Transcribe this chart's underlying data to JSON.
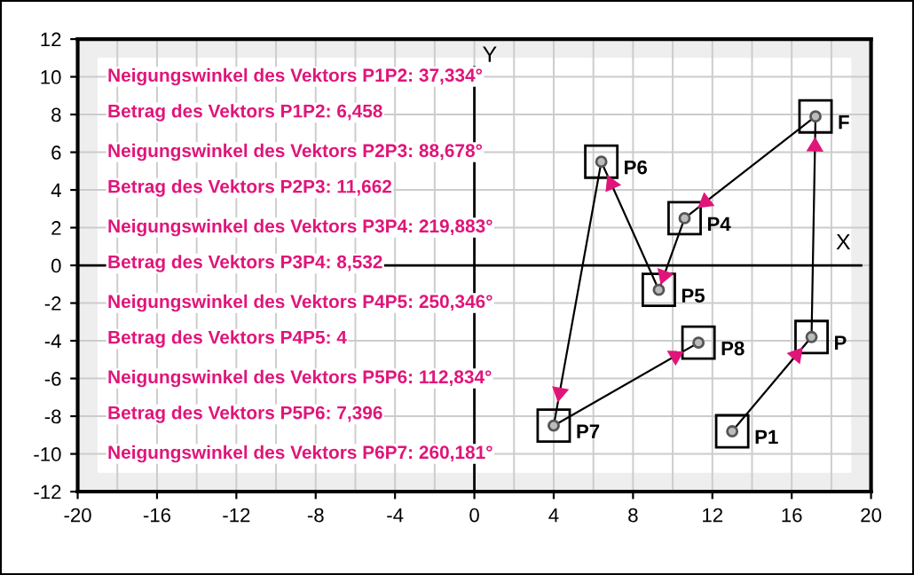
{
  "chart_data": {
    "type": "line",
    "xlim": [
      -20,
      20
    ],
    "ylim": [
      -12,
      12
    ],
    "xticks": [
      -20,
      -16,
      -12,
      -8,
      -4,
      0,
      4,
      8,
      12,
      16,
      20
    ],
    "yticks": [
      -12,
      -10,
      -8,
      -6,
      -4,
      -2,
      0,
      2,
      4,
      6,
      8,
      10,
      12
    ],
    "grid": true,
    "marker": "square",
    "line_style": "solid",
    "series": [
      {
        "color": "#000000",
        "x": [
          13,
          17,
          17.2,
          10.6,
          9.3,
          6.4,
          4,
          11.3
        ],
        "values": [
          -8.8,
          -3.8,
          7.9,
          2.5,
          -1.3,
          5.5,
          -8.5,
          -4.1
        ]
      }
    ],
    "annotations": [
      "Neigungswinkel des Vektors P1P2: 37,334°",
      "Betrag des Vektors P1P2: 6,458",
      "Neigungswinkel des Vektors P2P3: 88,678°",
      "Betrag des Vektors P2P3: 11,662",
      "Neigungswinkel des Vektors P3P4: 219,883°",
      "Betrag des Vektors P3P4: 8,532",
      "Neigungswinkel des Vektors P4P5: 250,346°",
      "Betrag des Vektors P4P5: 4",
      "Neigungswinkel des Vektors P5P6: 112,834°",
      "Betrag des Vektors P5P6: 7,396",
      "Neigungswinkel des Vektors P6P7: 260,181°",
      {
        "text": "P1",
        "x": 13,
        "y": -8.8
      },
      {
        "text": "P",
        "x": 17,
        "y": -3.8
      },
      {
        "text": "F",
        "x": 17.2,
        "y": 7.9
      },
      {
        "text": "P4",
        "x": 10.6,
        "y": 2.5
      },
      {
        "text": "P5",
        "x": 9.3,
        "y": -1.3
      },
      {
        "text": "P6",
        "x": 6.4,
        "y": 5.5
      },
      {
        "text": "P7",
        "x": 4,
        "y": -8.5
      },
      {
        "text": "P8",
        "x": 11.3,
        "y": -4.1
      },
      "X",
      "Y"
    ]
  }
}
